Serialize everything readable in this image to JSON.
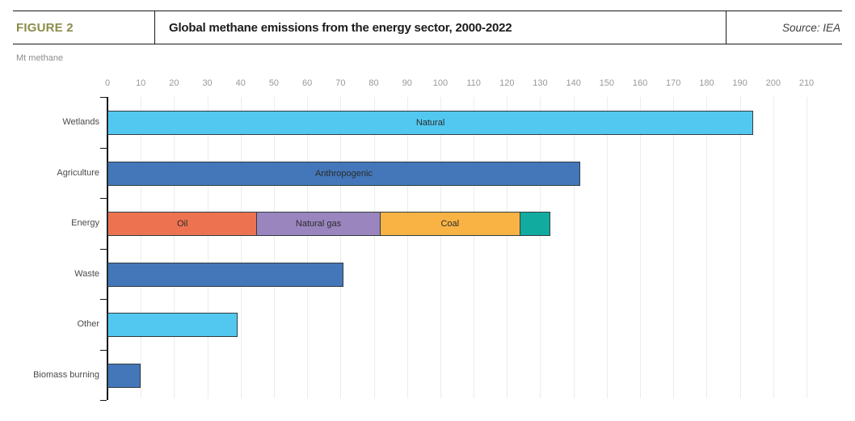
{
  "header": {
    "figure_label": "FIGURE 2",
    "title": "Global methane emissions from the energy sector, 2000-2022",
    "source": "Source: IEA"
  },
  "chart_data": {
    "type": "bar",
    "orientation": "horizontal",
    "title": "Global methane emissions from the energy sector, 2000-2022",
    "unit_label": "Mt methane",
    "xlabel": "",
    "ylabel": "",
    "xlim": [
      0,
      210
    ],
    "xticks": [
      0,
      10,
      20,
      30,
      40,
      50,
      60,
      70,
      80,
      90,
      100,
      110,
      120,
      130,
      140,
      150,
      160,
      170,
      180,
      190,
      200,
      210
    ],
    "grid": true,
    "legend": false,
    "colors": {
      "natural_light_blue": "#52c8f0",
      "anthropogenic_blue": "#4377b9",
      "oil_orange": "#ed7350",
      "natural_gas_purple": "#9b85be",
      "coal_amber": "#f9b344",
      "energy_other_teal": "#12aba0",
      "figure_label_olive": "#8b8b49",
      "gridline_gray": "#ececec"
    },
    "rows": [
      {
        "category": "Wetlands",
        "segments": [
          {
            "label": "Natural",
            "value": 194,
            "color": "#52c8f0"
          }
        ]
      },
      {
        "category": "Agriculture",
        "segments": [
          {
            "label": "Anthropogenic",
            "value": 142,
            "color": "#4377b9"
          }
        ]
      },
      {
        "category": "Energy",
        "segments": [
          {
            "label": "Oil",
            "value": 45,
            "color": "#ed7350"
          },
          {
            "label": "Natural gas",
            "value": 37,
            "color": "#9b85be"
          },
          {
            "label": "Coal",
            "value": 42,
            "color": "#f9b344"
          },
          {
            "label": "",
            "value": 9,
            "color": "#12aba0"
          }
        ]
      },
      {
        "category": "Waste",
        "segments": [
          {
            "label": "",
            "value": 71,
            "color": "#4377b9"
          }
        ]
      },
      {
        "category": "Other",
        "segments": [
          {
            "label": "",
            "value": 39,
            "color": "#52c8f0"
          }
        ]
      },
      {
        "category": "Biomass burning",
        "segments": [
          {
            "label": "",
            "value": 10,
            "color": "#4377b9"
          }
        ]
      }
    ]
  }
}
